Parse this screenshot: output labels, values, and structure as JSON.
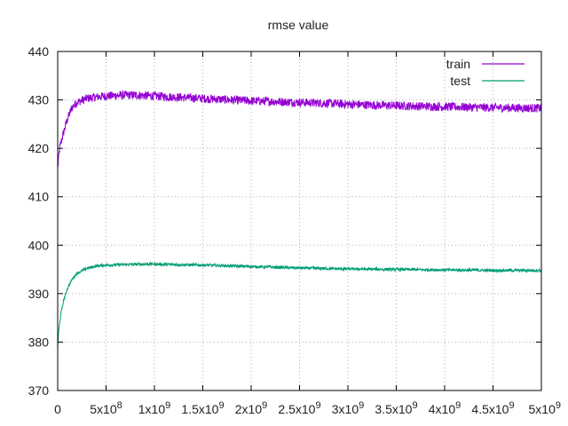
{
  "chart_data": {
    "type": "line",
    "title": "rmse value",
    "xlabel": "",
    "ylabel": "",
    "xlim": [
      0,
      5000000000
    ],
    "ylim": [
      370,
      440
    ],
    "grid": true,
    "legend_position": "top-right",
    "x_ticks": [
      {
        "value": 0,
        "mantissa": "0",
        "exponent": ""
      },
      {
        "value": 500000000,
        "mantissa": "5x10",
        "exponent": "8"
      },
      {
        "value": 1000000000,
        "mantissa": "1x10",
        "exponent": "9"
      },
      {
        "value": 1500000000,
        "mantissa": "1.5x10",
        "exponent": "9"
      },
      {
        "value": 2000000000,
        "mantissa": "2x10",
        "exponent": "9"
      },
      {
        "value": 2500000000,
        "mantissa": "2.5x10",
        "exponent": "9"
      },
      {
        "value": 3000000000,
        "mantissa": "3x10",
        "exponent": "9"
      },
      {
        "value": 3500000000,
        "mantissa": "3.5x10",
        "exponent": "9"
      },
      {
        "value": 4000000000,
        "mantissa": "4x10",
        "exponent": "9"
      },
      {
        "value": 4500000000,
        "mantissa": "4.5x10",
        "exponent": "9"
      },
      {
        "value": 5000000000,
        "mantissa": "5x10",
        "exponent": "9"
      }
    ],
    "y_ticks": [
      370,
      380,
      390,
      400,
      410,
      420,
      430,
      440
    ],
    "series": [
      {
        "name": "train",
        "color": "#9400d3",
        "noise_amplitude": 0.9,
        "points": [
          [
            0,
            416
          ],
          [
            20000000,
            420
          ],
          [
            50000000,
            422.5
          ],
          [
            100000000,
            426
          ],
          [
            150000000,
            428.5
          ],
          [
            200000000,
            429.5
          ],
          [
            300000000,
            430.3
          ],
          [
            400000000,
            430.6
          ],
          [
            500000000,
            430.8
          ],
          [
            600000000,
            430.9
          ],
          [
            700000000,
            431
          ],
          [
            800000000,
            431
          ],
          [
            900000000,
            430.9
          ],
          [
            1000000000,
            430.8
          ],
          [
            1200000000,
            430.6
          ],
          [
            1400000000,
            430.4
          ],
          [
            1600000000,
            430.2
          ],
          [
            1800000000,
            430.0
          ],
          [
            2000000000,
            429.8
          ],
          [
            2200000000,
            429.7
          ],
          [
            2500000000,
            429.5
          ],
          [
            2800000000,
            429.3
          ],
          [
            3000000000,
            429.1
          ],
          [
            3500000000,
            428.8
          ],
          [
            4000000000,
            428.6
          ],
          [
            4500000000,
            428.4
          ],
          [
            5000000000,
            428.3
          ]
        ]
      },
      {
        "name": "test",
        "color": "#009e73",
        "noise_amplitude": 0.3,
        "points": [
          [
            0,
            379
          ],
          [
            10000000,
            382
          ],
          [
            30000000,
            385.5
          ],
          [
            60000000,
            388.5
          ],
          [
            100000000,
            391
          ],
          [
            150000000,
            393
          ],
          [
            200000000,
            394.2
          ],
          [
            300000000,
            395.2
          ],
          [
            400000000,
            395.7
          ],
          [
            500000000,
            395.9
          ],
          [
            700000000,
            396.0
          ],
          [
            900000000,
            396.1
          ],
          [
            1000000000,
            396.1
          ],
          [
            1200000000,
            396.0
          ],
          [
            1500000000,
            395.9
          ],
          [
            2000000000,
            395.6
          ],
          [
            2500000000,
            395.3
          ],
          [
            3000000000,
            395.1
          ],
          [
            3500000000,
            395.0
          ],
          [
            4000000000,
            394.9
          ],
          [
            4500000000,
            394.8
          ],
          [
            5000000000,
            394.8
          ]
        ]
      }
    ]
  }
}
